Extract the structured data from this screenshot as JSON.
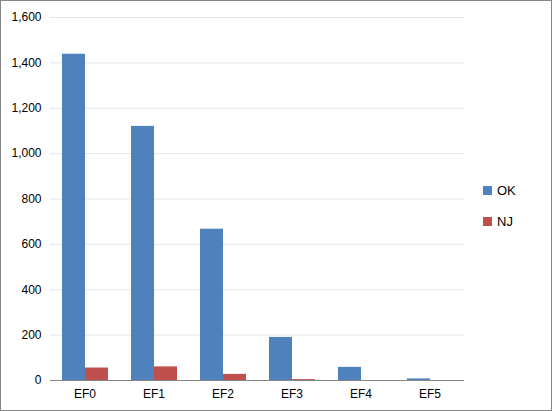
{
  "chart_data": {
    "type": "bar",
    "categories": [
      "EF0",
      "EF1",
      "EF2",
      "EF3",
      "EF4",
      "EF5"
    ],
    "series": [
      {
        "name": "OK",
        "color": "#4f81bd",
        "values": [
          1438,
          1120,
          667,
          190,
          58,
          7
        ]
      },
      {
        "name": "NJ",
        "color": "#c0504d",
        "values": [
          55,
          60,
          27,
          4,
          0,
          0
        ]
      }
    ],
    "ylim": [
      0,
      1600
    ],
    "yticks": [
      0,
      200,
      400,
      600,
      800,
      1000,
      1200,
      1400,
      1600
    ],
    "grid": true,
    "legend": "right"
  }
}
